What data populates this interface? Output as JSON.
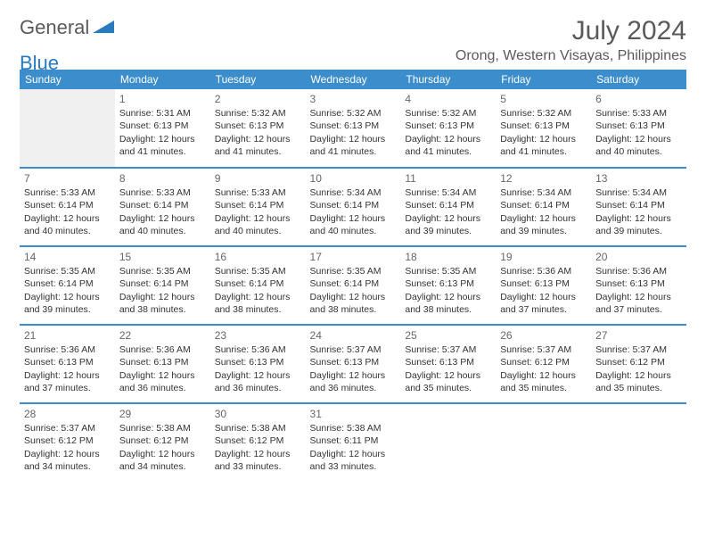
{
  "logo": {
    "word1": "General",
    "word2": "Blue",
    "color1": "#5a5a5a",
    "color2": "#2a7ac0"
  },
  "title": "July 2024",
  "location": "Orong, Western Visayas, Philippines",
  "colors": {
    "header_bg": "#3c8dcc",
    "header_text": "#ffffff",
    "row_divider": "#3c8dcc",
    "body_text": "#333333",
    "empty_bg": "#f0f0f0",
    "background": "#ffffff"
  },
  "dayNames": [
    "Sunday",
    "Monday",
    "Tuesday",
    "Wednesday",
    "Thursday",
    "Friday",
    "Saturday"
  ],
  "labels": {
    "sunrise": "Sunrise:",
    "sunset": "Sunset:",
    "daylight": "Daylight:"
  },
  "startWeekday": 1,
  "daysInMonth": 31,
  "days": {
    "1": {
      "sunrise": "5:31 AM",
      "sunset": "6:13 PM",
      "daylight": "12 hours and 41 minutes."
    },
    "2": {
      "sunrise": "5:32 AM",
      "sunset": "6:13 PM",
      "daylight": "12 hours and 41 minutes."
    },
    "3": {
      "sunrise": "5:32 AM",
      "sunset": "6:13 PM",
      "daylight": "12 hours and 41 minutes."
    },
    "4": {
      "sunrise": "5:32 AM",
      "sunset": "6:13 PM",
      "daylight": "12 hours and 41 minutes."
    },
    "5": {
      "sunrise": "5:32 AM",
      "sunset": "6:13 PM",
      "daylight": "12 hours and 41 minutes."
    },
    "6": {
      "sunrise": "5:33 AM",
      "sunset": "6:13 PM",
      "daylight": "12 hours and 40 minutes."
    },
    "7": {
      "sunrise": "5:33 AM",
      "sunset": "6:14 PM",
      "daylight": "12 hours and 40 minutes."
    },
    "8": {
      "sunrise": "5:33 AM",
      "sunset": "6:14 PM",
      "daylight": "12 hours and 40 minutes."
    },
    "9": {
      "sunrise": "5:33 AM",
      "sunset": "6:14 PM",
      "daylight": "12 hours and 40 minutes."
    },
    "10": {
      "sunrise": "5:34 AM",
      "sunset": "6:14 PM",
      "daylight": "12 hours and 40 minutes."
    },
    "11": {
      "sunrise": "5:34 AM",
      "sunset": "6:14 PM",
      "daylight": "12 hours and 39 minutes."
    },
    "12": {
      "sunrise": "5:34 AM",
      "sunset": "6:14 PM",
      "daylight": "12 hours and 39 minutes."
    },
    "13": {
      "sunrise": "5:34 AM",
      "sunset": "6:14 PM",
      "daylight": "12 hours and 39 minutes."
    },
    "14": {
      "sunrise": "5:35 AM",
      "sunset": "6:14 PM",
      "daylight": "12 hours and 39 minutes."
    },
    "15": {
      "sunrise": "5:35 AM",
      "sunset": "6:14 PM",
      "daylight": "12 hours and 38 minutes."
    },
    "16": {
      "sunrise": "5:35 AM",
      "sunset": "6:14 PM",
      "daylight": "12 hours and 38 minutes."
    },
    "17": {
      "sunrise": "5:35 AM",
      "sunset": "6:14 PM",
      "daylight": "12 hours and 38 minutes."
    },
    "18": {
      "sunrise": "5:35 AM",
      "sunset": "6:13 PM",
      "daylight": "12 hours and 38 minutes."
    },
    "19": {
      "sunrise": "5:36 AM",
      "sunset": "6:13 PM",
      "daylight": "12 hours and 37 minutes."
    },
    "20": {
      "sunrise": "5:36 AM",
      "sunset": "6:13 PM",
      "daylight": "12 hours and 37 minutes."
    },
    "21": {
      "sunrise": "5:36 AM",
      "sunset": "6:13 PM",
      "daylight": "12 hours and 37 minutes."
    },
    "22": {
      "sunrise": "5:36 AM",
      "sunset": "6:13 PM",
      "daylight": "12 hours and 36 minutes."
    },
    "23": {
      "sunrise": "5:36 AM",
      "sunset": "6:13 PM",
      "daylight": "12 hours and 36 minutes."
    },
    "24": {
      "sunrise": "5:37 AM",
      "sunset": "6:13 PM",
      "daylight": "12 hours and 36 minutes."
    },
    "25": {
      "sunrise": "5:37 AM",
      "sunset": "6:13 PM",
      "daylight": "12 hours and 35 minutes."
    },
    "26": {
      "sunrise": "5:37 AM",
      "sunset": "6:12 PM",
      "daylight": "12 hours and 35 minutes."
    },
    "27": {
      "sunrise": "5:37 AM",
      "sunset": "6:12 PM",
      "daylight": "12 hours and 35 minutes."
    },
    "28": {
      "sunrise": "5:37 AM",
      "sunset": "6:12 PM",
      "daylight": "12 hours and 34 minutes."
    },
    "29": {
      "sunrise": "5:38 AM",
      "sunset": "6:12 PM",
      "daylight": "12 hours and 34 minutes."
    },
    "30": {
      "sunrise": "5:38 AM",
      "sunset": "6:12 PM",
      "daylight": "12 hours and 33 minutes."
    },
    "31": {
      "sunrise": "5:38 AM",
      "sunset": "6:11 PM",
      "daylight": "12 hours and 33 minutes."
    }
  }
}
